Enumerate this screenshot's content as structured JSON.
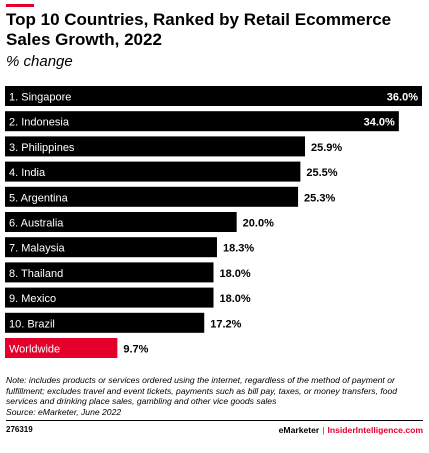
{
  "header": {
    "title": "Top 10 Countries, Ranked by Retail Ecommerce Sales Growth, 2022",
    "subtitle": "% change"
  },
  "colors": {
    "bar": "#000000",
    "highlight": "#e4002b",
    "label_on_bar": "#ffffff"
  },
  "chart_data": {
    "type": "bar",
    "orientation": "horizontal",
    "title": "Top 10 Countries, Ranked by Retail Ecommerce Sales Growth, 2022",
    "subtitle": "% change",
    "categories": [
      "1. Singapore",
      "2. Indonesia",
      "3. Philippines",
      "4. India",
      "5. Argentina",
      "6. Australia",
      "7. Malaysia",
      "8. Thailand",
      "9. Mexico",
      "10. Brazil",
      "Worldwide"
    ],
    "values": [
      36.0,
      34.0,
      25.9,
      25.5,
      25.3,
      20.0,
      18.3,
      18.0,
      18.0,
      17.2,
      9.7
    ],
    "value_labels": [
      "36.0%",
      "34.0%",
      "25.9%",
      "25.5%",
      "25.3%",
      "20.0%",
      "18.3%",
      "18.0%",
      "18.0%",
      "17.2%",
      "9.7%"
    ],
    "highlight": [
      "Worldwide"
    ],
    "xlim": [
      0,
      36.0
    ],
    "grid": false,
    "legend": "none"
  },
  "note": "Note: includes products or services ordered using the internet, regardless of the method of payment or fulfillment; excludes travel and event tickets, payments such as bill pay, taxes, or money transfers, food services and drinking place sales, gambling and other vice goods sales",
  "source": "Source: eMarketer, June 2022",
  "footer": {
    "chart_id": "276319",
    "brand": "eMarketer",
    "separator": "|",
    "site": "InsiderIntelligence.com"
  }
}
